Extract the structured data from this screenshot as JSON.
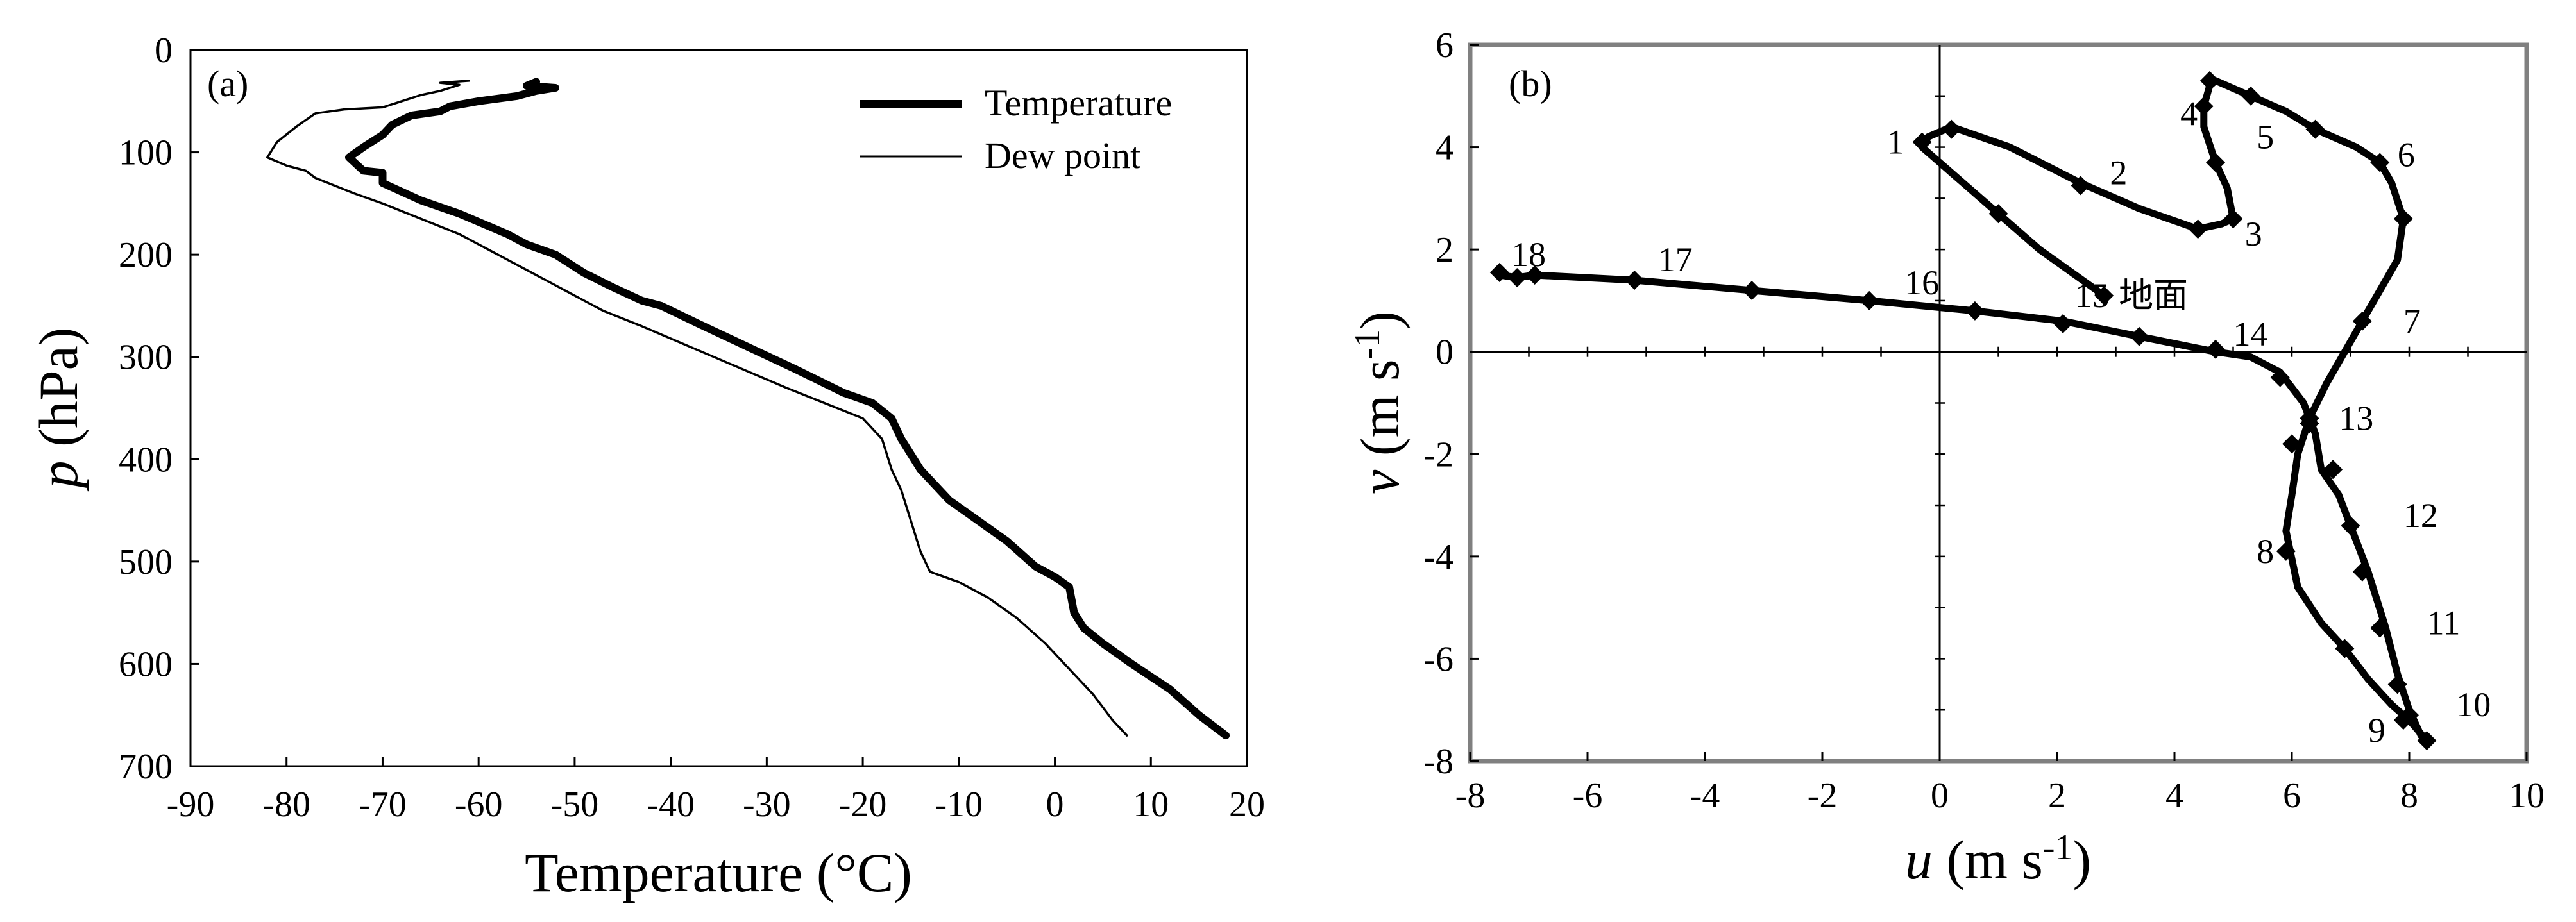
{
  "chart_data": [
    {
      "type": "line",
      "panel_label": "(a)",
      "xlabel": "Temperature (°C)",
      "ylabel_prefix": "p",
      "ylabel_rest": " (hPa)",
      "xlim": [
        -90,
        20
      ],
      "ylim": [
        700,
        0
      ],
      "y_inverted": true,
      "grid": false,
      "legend_placement": "top-right",
      "x_ticks": [
        -90,
        -80,
        -70,
        -60,
        -50,
        -40,
        -30,
        -20,
        -10,
        0,
        10,
        20
      ],
      "y_ticks": [
        0,
        100,
        200,
        300,
        400,
        500,
        600,
        700
      ],
      "series": [
        {
          "name": "Temperature",
          "style": "thick",
          "points": [
            [
              17.8,
              670
            ],
            [
              15,
              650
            ],
            [
              12,
              625
            ],
            [
              8,
              600
            ],
            [
              5,
              580
            ],
            [
              3,
              565
            ],
            [
              2,
              550
            ],
            [
              1.5,
              525
            ],
            [
              0,
              515
            ],
            [
              -2,
              505
            ],
            [
              -5,
              480
            ],
            [
              -8,
              460
            ],
            [
              -11,
              440
            ],
            [
              -14,
              410
            ],
            [
              -16,
              380
            ],
            [
              -17,
              360
            ],
            [
              -19,
              345
            ],
            [
              -22,
              335
            ],
            [
              -27,
              312
            ],
            [
              -32,
              290
            ],
            [
              -37,
              268
            ],
            [
              -41,
              250
            ],
            [
              -43,
              245
            ],
            [
              -46,
              232
            ],
            [
              -49,
              218
            ],
            [
              -52,
              200
            ],
            [
              -55,
              190
            ],
            [
              -57,
              180
            ],
            [
              -62,
              160
            ],
            [
              -66,
              147
            ],
            [
              -70,
              130
            ],
            [
              -70,
              120
            ],
            [
              -72,
              118
            ],
            [
              -73.5,
              105
            ],
            [
              -72,
              95
            ],
            [
              -70,
              83
            ],
            [
              -69,
              73
            ],
            [
              -67,
              64
            ],
            [
              -64,
              60
            ],
            [
              -63,
              55
            ],
            [
              -60,
              50
            ],
            [
              -56,
              45
            ],
            [
              -54,
              40
            ],
            [
              -52,
              37
            ],
            [
              -55,
              35
            ],
            [
              -54,
              31
            ]
          ]
        },
        {
          "name": "Dew point",
          "style": "thin",
          "points": [
            [
              7.5,
              670
            ],
            [
              6,
              655
            ],
            [
              4,
              630
            ],
            [
              2,
              610
            ],
            [
              -1,
              580
            ],
            [
              -4,
              555
            ],
            [
              -7,
              535
            ],
            [
              -10,
              520
            ],
            [
              -13,
              510
            ],
            [
              -14,
              490
            ],
            [
              -15,
              460
            ],
            [
              -16,
              430
            ],
            [
              -17,
              410
            ],
            [
              -17.5,
              395
            ],
            [
              -18,
              380
            ],
            [
              -20,
              360
            ],
            [
              -24,
              345
            ],
            [
              -28,
              330
            ],
            [
              -33,
              310
            ],
            [
              -38,
              290
            ],
            [
              -43,
              270
            ],
            [
              -47,
              255
            ],
            [
              -50,
              240
            ],
            [
              -52,
              230
            ],
            [
              -55,
              215
            ],
            [
              -58,
              200
            ],
            [
              -62,
              180
            ],
            [
              -66,
              165
            ],
            [
              -70,
              150
            ],
            [
              -73,
              140
            ],
            [
              -77,
              125
            ],
            [
              -78,
              118
            ],
            [
              -80,
              113
            ],
            [
              -82,
              105
            ],
            [
              -81,
              90
            ],
            [
              -79,
              75
            ],
            [
              -77,
              62
            ],
            [
              -74,
              58
            ],
            [
              -70,
              56
            ],
            [
              -68,
              50
            ],
            [
              -66,
              44
            ],
            [
              -64,
              40
            ],
            [
              -62,
              34
            ],
            [
              -64,
              32
            ],
            [
              -61,
              30
            ]
          ]
        }
      ]
    },
    {
      "type": "line",
      "panel_label": "(b)",
      "xlabel_prefix": "u",
      "xlabel_rest": " (m s",
      "xlabel_exp": "-1",
      "xlabel_close": ")",
      "ylabel_prefix": "v",
      "ylabel_rest": " (m s",
      "ylabel_exp": "-1",
      "ylabel_close": ")",
      "xlim": [
        -8,
        10
      ],
      "ylim": [
        -8,
        6
      ],
      "grid": false,
      "x_ticks": [
        -8,
        -6,
        -4,
        -2,
        0,
        2,
        4,
        6,
        8,
        10
      ],
      "y_ticks": [
        -8,
        -6,
        -4,
        -2,
        0,
        2,
        4,
        6
      ],
      "series": [
        {
          "name": "",
          "points": [
            [
              2.8,
              1.1
            ],
            [
              1.7,
              2.0
            ],
            [
              1.0,
              2.7
            ],
            [
              0.4,
              3.3
            ],
            [
              -0.3,
              4.0
            ],
            [
              -0.2,
              4.2
            ],
            [
              0.2,
              4.4
            ],
            [
              1.2,
              4.0
            ],
            [
              2.4,
              3.3
            ],
            [
              3.4,
              2.8
            ],
            [
              4.4,
              2.4
            ],
            [
              4.8,
              2.5
            ],
            [
              5.0,
              2.6
            ],
            [
              4.9,
              3.2
            ],
            [
              4.7,
              3.7
            ],
            [
              4.5,
              4.4
            ],
            [
              4.5,
              4.8
            ],
            [
              4.6,
              5.2
            ],
            [
              4.7,
              5.3
            ],
            [
              5.3,
              5.0
            ],
            [
              5.9,
              4.7
            ],
            [
              6.4,
              4.35
            ],
            [
              7.1,
              4.0
            ],
            [
              7.5,
              3.7
            ],
            [
              7.7,
              3.3
            ],
            [
              7.9,
              2.6
            ],
            [
              7.8,
              1.8
            ],
            [
              7.5,
              1.2
            ],
            [
              7.2,
              0.6
            ],
            [
              6.9,
              0.0
            ],
            [
              6.6,
              -0.6
            ],
            [
              6.3,
              -1.3
            ],
            [
              6.1,
              -2.0
            ],
            [
              6.0,
              -2.8
            ],
            [
              5.9,
              -3.5
            ],
            [
              6.1,
              -4.6
            ],
            [
              6.5,
              -5.3
            ],
            [
              6.9,
              -5.8
            ],
            [
              7.3,
              -6.4
            ],
            [
              7.7,
              -6.9
            ],
            [
              8.0,
              -7.2
            ],
            [
              8.3,
              -7.6
            ],
            [
              8.2,
              -7.5
            ],
            [
              8.0,
              -7.0
            ],
            [
              7.8,
              -6.3
            ],
            [
              7.6,
              -5.4
            ],
            [
              7.3,
              -4.3
            ],
            [
              7.0,
              -3.4
            ],
            [
              6.8,
              -2.8
            ],
            [
              6.5,
              -2.3
            ],
            [
              6.4,
              -1.6
            ],
            [
              6.2,
              -1.0
            ],
            [
              5.8,
              -0.4
            ],
            [
              5.3,
              -0.1
            ],
            [
              4.7,
              0.0
            ],
            [
              3.4,
              0.3
            ],
            [
              2.1,
              0.6
            ],
            [
              0.6,
              0.8
            ],
            [
              -1.2,
              1.0
            ],
            [
              -3.2,
              1.2
            ],
            [
              -5.2,
              1.4
            ],
            [
              -6.9,
              1.5
            ],
            [
              -7.2,
              1.45
            ],
            [
              -7.5,
              1.5
            ]
          ],
          "markers": [
            [
              2.8,
              1.1
            ],
            [
              1.0,
              2.7
            ],
            [
              -0.3,
              4.1
            ],
            [
              0.2,
              4.35
            ],
            [
              2.4,
              3.25
            ],
            [
              4.4,
              2.4
            ],
            [
              5.0,
              2.6
            ],
            [
              4.7,
              3.7
            ],
            [
              4.5,
              4.8
            ],
            [
              4.6,
              5.3
            ],
            [
              5.3,
              5.0
            ],
            [
              6.4,
              4.35
            ],
            [
              7.5,
              3.7
            ],
            [
              7.9,
              2.6
            ],
            [
              7.2,
              0.6
            ],
            [
              6.3,
              -1.3
            ],
            [
              6.0,
              -1.8
            ],
            [
              5.9,
              -3.9
            ],
            [
              6.9,
              -5.8
            ],
            [
              7.9,
              -7.2
            ],
            [
              8.3,
              -7.6
            ],
            [
              8.0,
              -7.1
            ],
            [
              7.8,
              -6.5
            ],
            [
              7.5,
              -5.4
            ],
            [
              7.2,
              -4.3
            ],
            [
              7.0,
              -3.4
            ],
            [
              6.7,
              -2.3
            ],
            [
              6.3,
              -1.4
            ],
            [
              5.8,
              -0.5
            ],
            [
              4.7,
              0.05
            ],
            [
              3.4,
              0.3
            ],
            [
              2.1,
              0.55
            ],
            [
              0.6,
              0.8
            ],
            [
              -1.2,
              1.0
            ],
            [
              -3.2,
              1.2
            ],
            [
              -5.2,
              1.4
            ],
            [
              -6.9,
              1.5
            ],
            [
              -7.2,
              1.45
            ],
            [
              -7.5,
              1.55
            ]
          ],
          "annotations": [
            {
              "text": "地面",
              "at": [
                3.05,
                1.1
              ]
            },
            {
              "text": "1",
              "at": [
                -0.9,
                4.1
              ]
            },
            {
              "text": "2",
              "at": [
                2.9,
                3.5
              ]
            },
            {
              "text": "3",
              "at": [
                5.2,
                2.3
              ]
            },
            {
              "text": "4",
              "at": [
                4.1,
                4.65
              ]
            },
            {
              "text": "5",
              "at": [
                5.4,
                4.2
              ]
            },
            {
              "text": "6",
              "at": [
                7.8,
                3.85
              ]
            },
            {
              "text": "7",
              "at": [
                7.9,
                0.6
              ]
            },
            {
              "text": "8",
              "at": [
                5.4,
                -3.9
              ]
            },
            {
              "text": "9",
              "at": [
                7.3,
                -7.4
              ]
            },
            {
              "text": "10",
              "at": [
                8.8,
                -6.9
              ]
            },
            {
              "text": "11",
              "at": [
                8.3,
                -5.3
              ]
            },
            {
              "text": "12",
              "at": [
                7.9,
                -3.2
              ]
            },
            {
              "text": "13",
              "at": [
                6.8,
                -1.3
              ]
            },
            {
              "text": "14",
              "at": [
                5.0,
                0.35
              ]
            },
            {
              "text": "15",
              "at": [
                2.3,
                1.1
              ]
            },
            {
              "text": "16",
              "at": [
                -0.6,
                1.35
              ]
            },
            {
              "text": "17",
              "at": [
                -4.8,
                1.8
              ]
            },
            {
              "text": "18",
              "at": [
                -7.3,
                1.9
              ]
            }
          ]
        }
      ]
    }
  ]
}
